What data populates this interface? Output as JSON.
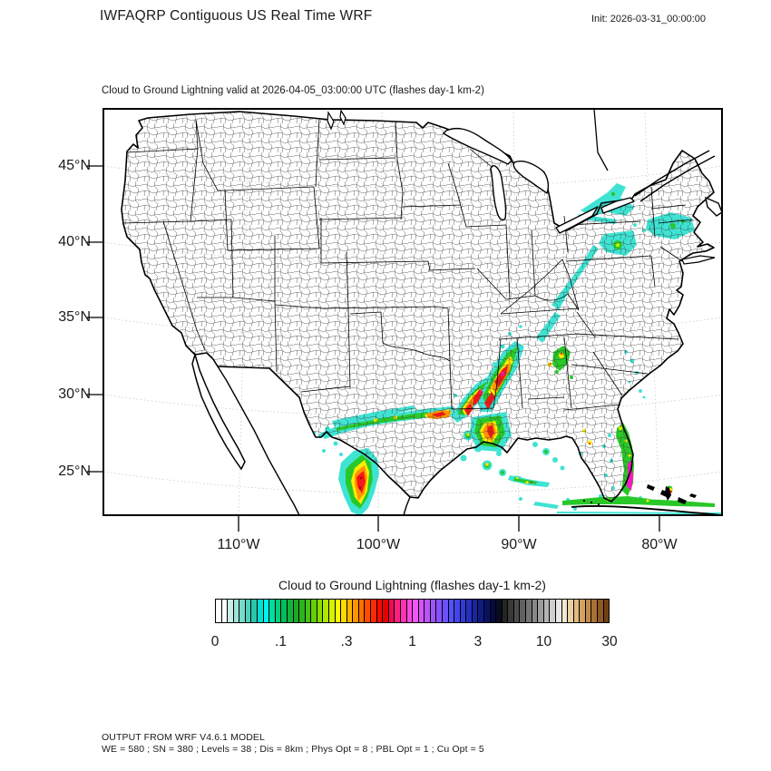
{
  "header": {
    "title": "IWFAQRP Contiguous US Real Time WRF",
    "init": "Init: 2026-03-31_00:00:00"
  },
  "map": {
    "subtitle": "Cloud to Ground Lightning valid at 2026-04-05_03:00:00 UTC   (flashes day-1 km-2)",
    "axes": {
      "lat": [
        "45°N",
        "40°N",
        "35°N",
        "30°N",
        "25°N"
      ],
      "lon": [
        "110°W",
        "100°W",
        "90°W",
        "80°W"
      ]
    },
    "storm_regions": [
      {
        "region": "Northern Mexico / Rio Grande cluster",
        "intensity": "extreme (10-30 flashes)"
      },
      {
        "region": "Central Texas west-east band",
        "intensity": "moderate (0.1-3)"
      },
      {
        "region": "Louisiana / Mississippi delta",
        "intensity": "high (3-10)"
      },
      {
        "region": "Mississippi-Alabama squall line",
        "intensity": "extreme (10-30)"
      },
      {
        "region": "Tennessee Valley into Ohio Valley",
        "intensity": "light (0-0.3)"
      },
      {
        "region": "Central Appalachians / Pennsylvania",
        "intensity": "moderate (0.3-1)"
      },
      {
        "region": "Upstate New York / New England",
        "intensity": "light (0-0.3)"
      },
      {
        "region": "St. Lawrence Valley (Ontario/Quebec)",
        "intensity": "light (0-0.3)"
      },
      {
        "region": "Georgia / Carolinas cluster",
        "intensity": "moderate (0.3-3)"
      },
      {
        "region": "Florida east coast band",
        "intensity": "high (1-10)"
      },
      {
        "region": "Gulf of Mexico scattered cells",
        "intensity": "light-moderate (0-1)"
      },
      {
        "region": "Cuba / Florida Straits band",
        "intensity": "light (0-0.3)"
      },
      {
        "region": "Bahamas cell",
        "intensity": "moderate (1-3)"
      }
    ]
  },
  "colorbar": {
    "title": "Cloud to Ground Lightning  (flashes day-1 km-2)",
    "units": "flashes day-1 km-2",
    "tick_labels": [
      "0",
      ".1",
      ".3",
      "1",
      "3",
      "10",
      "30"
    ],
    "colors": [
      "#ffffff",
      "#ffffff",
      "#c8ece6",
      "#9fe3d8",
      "#76dac9",
      "#4ed1ba",
      "#27c8ac",
      "#00e0d0",
      "#00f2ee",
      "#00dca0",
      "#00cd7d",
      "#00be5a",
      "#10b43c",
      "#1ca828",
      "#2bb31c",
      "#45c112",
      "#63cf09",
      "#85dd00",
      "#ace800",
      "#d7f200",
      "#fdfd00",
      "#ffd900",
      "#ffb600",
      "#ff9300",
      "#ff7000",
      "#ff4d00",
      "#ff2a00",
      "#fb0b00",
      "#e60000",
      "#ec0d4e",
      "#ff1f83",
      "#ff32b4",
      "#ff46e0",
      "#f055f5",
      "#d554f7",
      "#bb53f9",
      "#a052fb",
      "#8551fd",
      "#6b50ff",
      "#5451fa",
      "#4246e8",
      "#333bd2",
      "#2531bc",
      "#1a26a0",
      "#111c80",
      "#0a1260",
      "#060940",
      "#0b0b20",
      "#242424",
      "#383838",
      "#4c4c4c",
      "#606060",
      "#747474",
      "#888888",
      "#9c9c9c",
      "#b4b4b4",
      "#cecece",
      "#e6e6e6",
      "#f4e6cd",
      "#ead0a6",
      "#dfba82",
      "#d2a360",
      "#c28a47",
      "#aa7134",
      "#8f5823",
      "#6f4015"
    ]
  },
  "footer": {
    "line1": "OUTPUT FROM WRF V4.6.1 MODEL",
    "line2": "WE = 580 ; SN = 380 ; Levels = 38 ; Dis = 8km ; Phys Opt = 8 ; PBL Opt = 1 ; Cu Opt = 5"
  }
}
